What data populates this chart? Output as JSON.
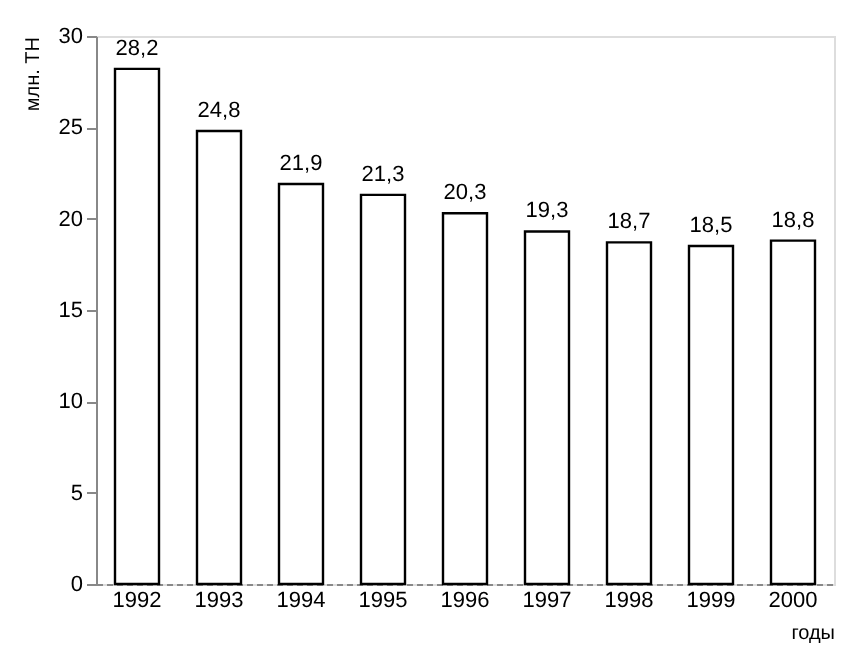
{
  "chart_data": {
    "type": "bar",
    "xlabel": "годы",
    "ylabel": "млн. ТН",
    "categories": [
      "1992",
      "1993",
      "1994",
      "1995",
      "1996",
      "1997",
      "1998",
      "1999",
      "2000"
    ],
    "values": [
      28.2,
      24.8,
      21.9,
      21.3,
      20.3,
      19.3,
      18.7,
      18.5,
      18.8
    ],
    "value_labels": [
      "28,2",
      "24,8",
      "21,9",
      "21,3",
      "20,3",
      "19,3",
      "18,7",
      "18,5",
      "18,8"
    ],
    "color": "#ffffff",
    "ylim": [
      0,
      30
    ],
    "yticks": [
      0,
      5,
      10,
      15,
      20,
      25,
      30
    ],
    "grid": false
  }
}
